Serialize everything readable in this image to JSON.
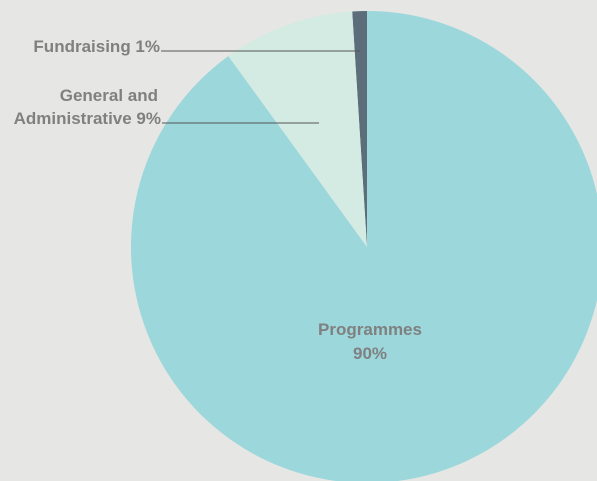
{
  "chart_data": {
    "type": "pie",
    "slices": [
      {
        "label": "Programmes",
        "value": 90,
        "percent_text": "90%",
        "color": "#9bd7db"
      },
      {
        "label": "General and Administrative",
        "value": 9,
        "percent_text": "9%",
        "color": "#d4ebe3"
      },
      {
        "label": "Fundraising",
        "value": 1,
        "percent_text": "1%",
        "color": "#5b6e79"
      }
    ],
    "labels": {
      "fundraising": "Fundraising 1%",
      "general_line1": "General and",
      "general_line2": "Administrative 9%",
      "programmes_name": "Programmes",
      "programmes_pct": "90%"
    }
  },
  "colors": {
    "background": "#e6e6e4",
    "label_text": "#808080",
    "leader_line": "#555555"
  }
}
